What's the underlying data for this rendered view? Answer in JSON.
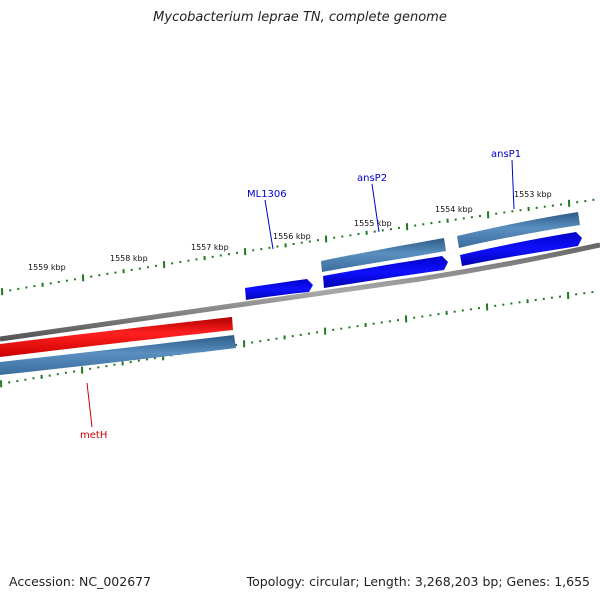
{
  "title": "Mycobacterium leprae TN, complete genome",
  "footer": {
    "accession": "Accession: NC_002677",
    "summary": "Topology: circular; Length: 3,268,203 bp; Genes: 1,655"
  },
  "ticks": [
    "1553 kbp",
    "1554 kbp",
    "1555 kbp",
    "1556 kbp",
    "1557 kbp",
    "1558 kbp",
    "1559 kbp"
  ],
  "genes": [
    {
      "name": "ansP1",
      "color": "#0000cc"
    },
    {
      "name": "ansP2",
      "color": "#0000cc"
    },
    {
      "name": "ML1306",
      "color": "#0000cc"
    },
    {
      "name": "metH",
      "color": "#cc0000"
    }
  ],
  "colors": {
    "forward_gene": "#0000e6",
    "reverse_gene": "#e00000",
    "cds_bar": "#4a7fb0",
    "backbone": "#808080",
    "tick": "#1f7a1f"
  }
}
